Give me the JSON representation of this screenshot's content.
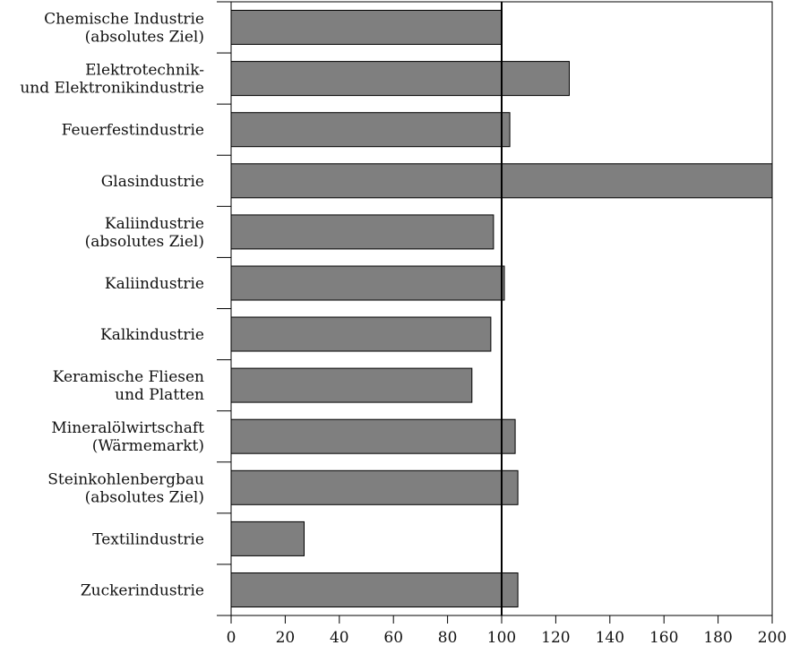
{
  "chart_data": {
    "type": "bar",
    "orientation": "horizontal",
    "categories": [
      [
        "Chemische Industrie",
        "(absolutes Ziel)"
      ],
      [
        "Elektrotechnik-",
        "und Elektronikindustrie"
      ],
      [
        "Feuerfestindustrie"
      ],
      [
        "Glasindustrie"
      ],
      [
        "Kaliindustrie",
        "(absolutes Ziel)"
      ],
      [
        "Kaliindustrie"
      ],
      [
        "Kalkindustrie"
      ],
      [
        "Keramische Fliesen",
        "und Platten"
      ],
      [
        "Mineralölwirtschaft",
        "(Wärmemarkt)"
      ],
      [
        "Steinkohlenbergbau",
        "(absolutes Ziel)"
      ],
      [
        "Textilindustrie"
      ],
      [
        "Zuckerindustrie"
      ]
    ],
    "values": [
      100,
      125,
      103,
      200,
      97,
      101,
      96,
      89,
      105,
      106,
      27,
      106
    ],
    "xlim": [
      0,
      200
    ],
    "xticks": [
      "0",
      "20",
      "40",
      "60",
      "80",
      "100",
      "120",
      "140",
      "160",
      "180",
      "200"
    ],
    "reference_line": 100,
    "bar_color": "#7f7f7f",
    "grid": false,
    "title": "",
    "xlabel": "",
    "ylabel": ""
  }
}
